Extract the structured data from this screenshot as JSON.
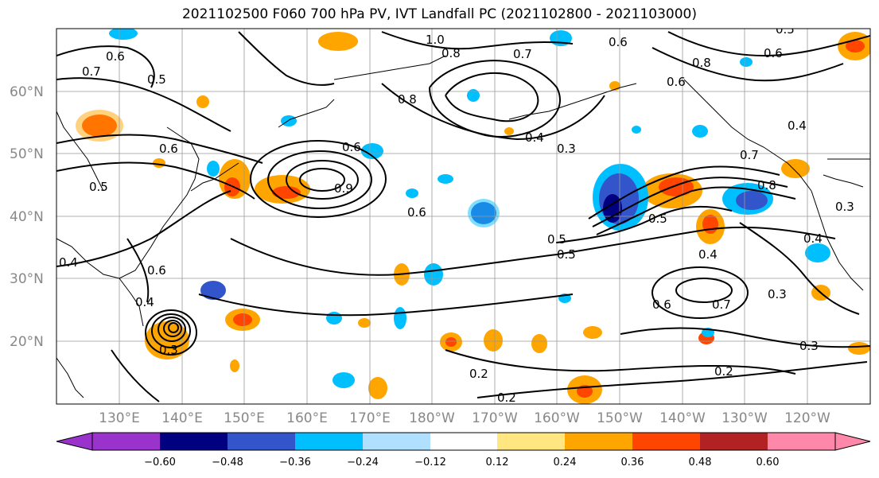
{
  "title": "2021102500 F060 700 hPa PV, IVT Landfall PC (2021102800 - 2021103000)",
  "lat_labels": [
    "60°N",
    "50°N",
    "40°N",
    "30°N",
    "20°N"
  ],
  "lon_labels": [
    "130°E",
    "140°E",
    "150°E",
    "160°E",
    "170°E",
    "180°W",
    "170°W",
    "160°W",
    "150°W",
    "140°W",
    "130°W",
    "120°W"
  ],
  "colorbar": {
    "ticks": [
      "−0.60",
      "−0.48",
      "−0.36",
      "−0.24",
      "−0.12",
      "0.12",
      "0.24",
      "0.36",
      "0.48",
      "0.60"
    ],
    "colors": [
      "#9933cc",
      "#000080",
      "#3355cc",
      "#00bfff",
      "#b0e0ff",
      "#ffffff",
      "#ffe680",
      "#ffa500",
      "#ff4500",
      "#b22222",
      "#ff88aa"
    ]
  },
  "contour_labels": [
    "0.6",
    "0.7",
    "0.5",
    "1.0",
    "0.8",
    "0.7",
    "0.6",
    "0.5",
    "0.8",
    "0.6",
    "0.6",
    "0.8",
    "0.6",
    "0.4",
    "0.3",
    "0.4",
    "0.7",
    "0.5",
    "0.6",
    "0.9",
    "0.6",
    "0.8",
    "0.5",
    "0.4",
    "0.5",
    "0.5",
    "0.6",
    "0.3",
    "0.7",
    "0.3",
    "0.4",
    "0.3",
    "0.2",
    "0.2",
    "0.2",
    "0.3",
    "0.6",
    "0.4",
    "0.4"
  ]
}
